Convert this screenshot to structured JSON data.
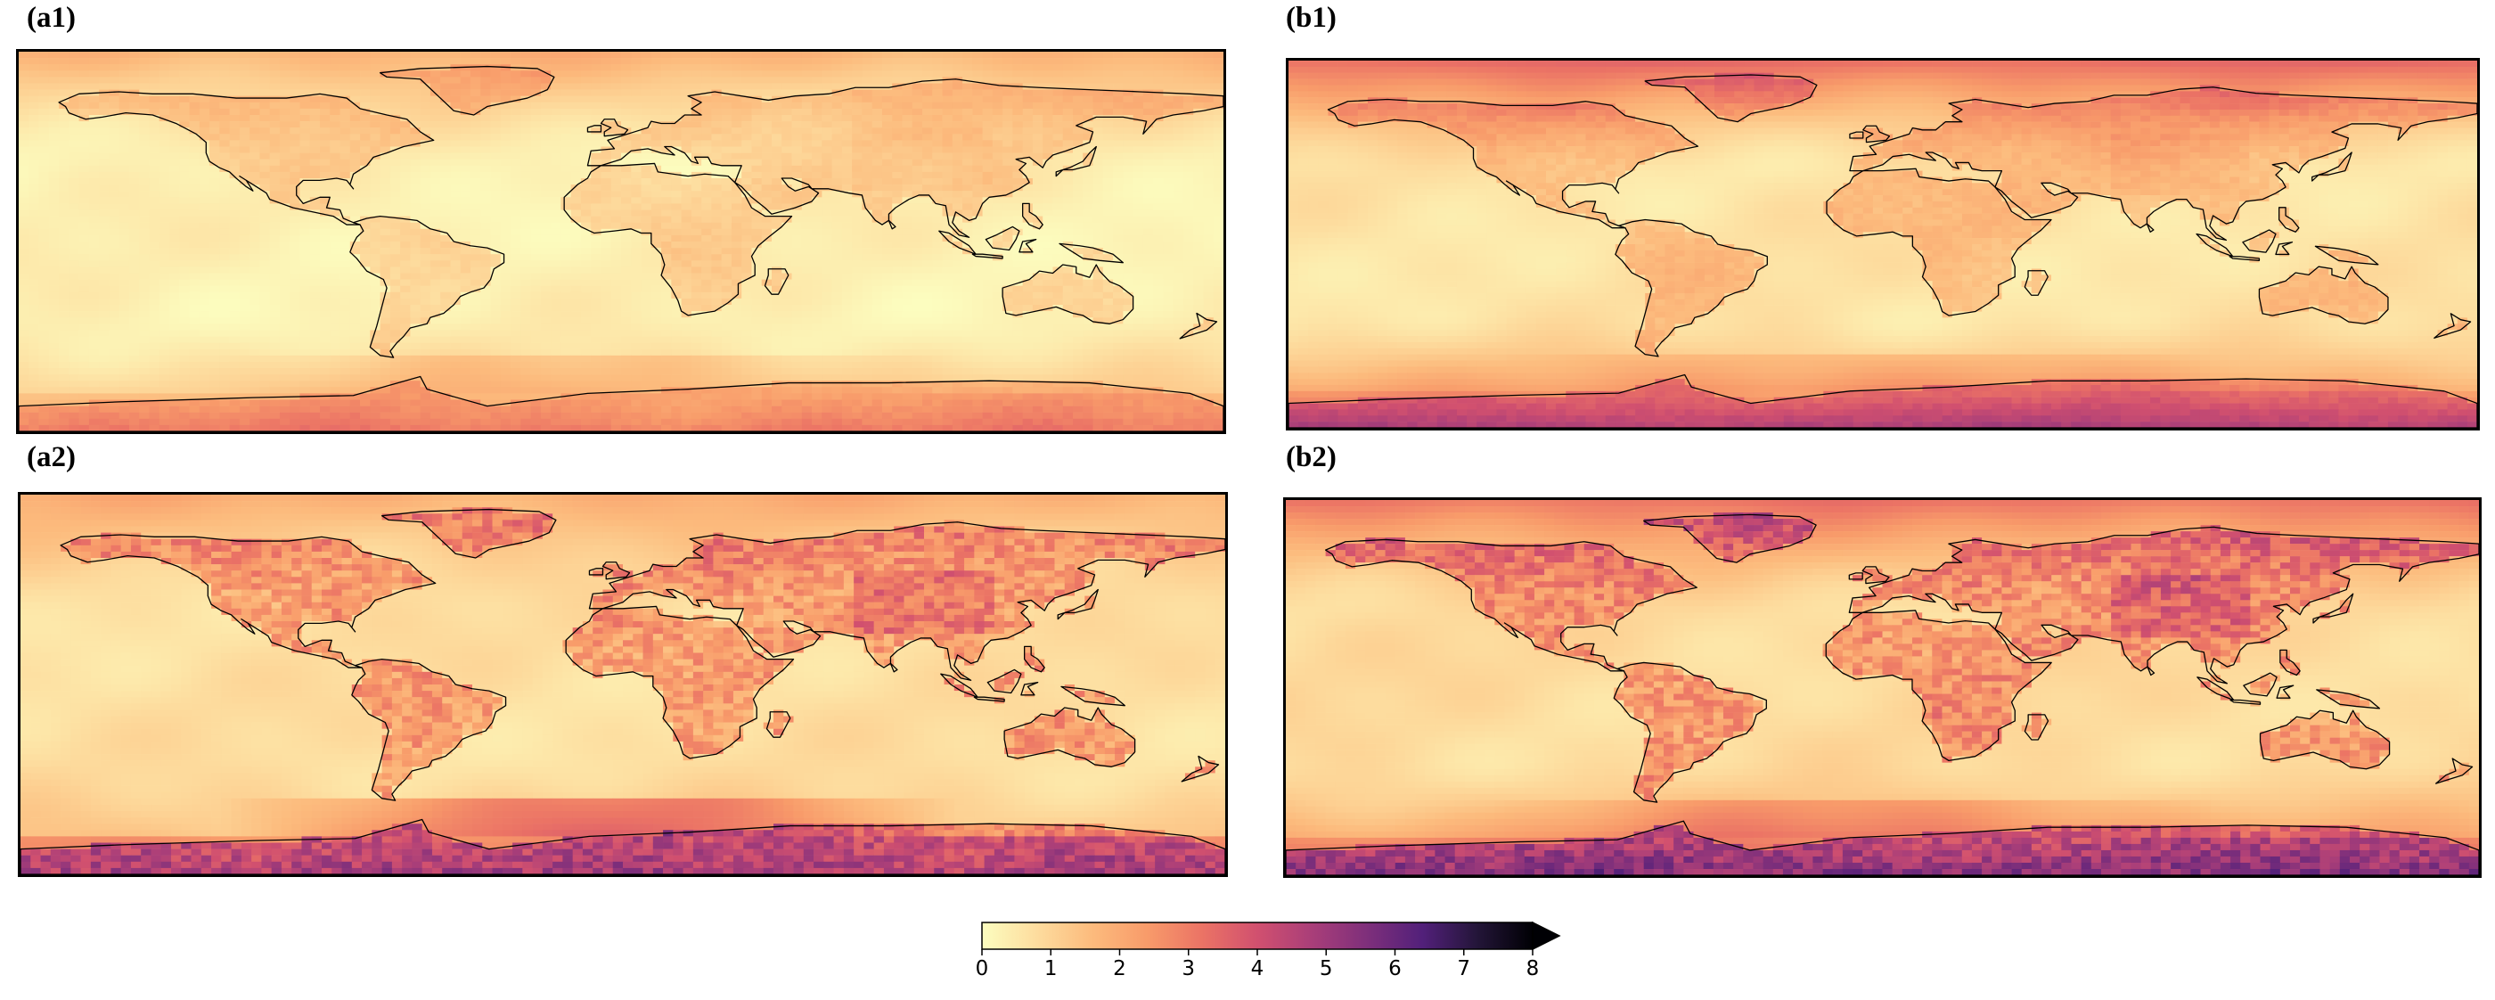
{
  "panels": [
    {
      "id": "a1",
      "label": "(a1)",
      "intensity": 0.15,
      "lat_gradient": 0.55,
      "land_noise": 0.08,
      "south_band": 0.35
    },
    {
      "id": "b1",
      "label": "(b1)",
      "intensity": 0.3,
      "lat_gradient": 1.0,
      "land_noise": 0.1,
      "south_band": 0.3
    },
    {
      "id": "a2",
      "label": "(a2)",
      "intensity": 0.35,
      "lat_gradient": 0.45,
      "land_noise": 0.45,
      "south_band": 1.0
    },
    {
      "id": "b2",
      "label": "(b2)",
      "intensity": 0.4,
      "lat_gradient": 0.85,
      "land_noise": 0.45,
      "south_band": 0.55
    }
  ],
  "colorbar": {
    "ticks": [
      "0",
      "1",
      "2",
      "3",
      "4",
      "5",
      "6",
      "7",
      "8"
    ],
    "vmin": 0,
    "vmax": 8,
    "extend": "max",
    "colormap": [
      "#fcfdbf",
      "#fddc9e",
      "#fcbb7d",
      "#f89b6a",
      "#eb7365",
      "#d1506f",
      "#a93e79",
      "#7e2f7b",
      "#52207a",
      "#231538",
      "#000004"
    ]
  }
}
